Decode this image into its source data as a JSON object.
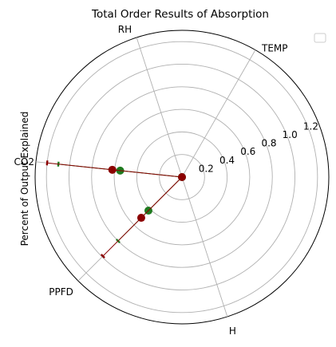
{
  "chart_data": {
    "type": "polar",
    "title": "Total Order Results of Absorption",
    "ylabel": "Percent of Output Explained",
    "theta_labels": [
      "TEMP",
      "RH",
      "CO2",
      "PPFD",
      "H"
    ],
    "theta_degrees": [
      60,
      108,
      174,
      225,
      288
    ],
    "r_ticks": [
      "0.2",
      "0.4",
      "0.6",
      "0.8",
      "1.0",
      "1.2"
    ],
    "r_tick_values": [
      0.2,
      0.4,
      0.6,
      0.8,
      1.0,
      1.2
    ],
    "rlim": [
      0,
      1.3
    ],
    "legend_placement": "top-right",
    "colors": {
      "green": "#1f7a1f",
      "darkred": "#8b0000",
      "grid": "#b0b0b0"
    },
    "series": [
      {
        "color": "#1f7a1f",
        "points": [
          {
            "theta": 174,
            "r": 0.55,
            "upper": 1.1
          },
          {
            "theta": 225,
            "r": 0.42,
            "upper": 0.8
          }
        ]
      },
      {
        "color": "#8b0000",
        "points": [
          {
            "theta": 174,
            "r": 0.62,
            "upper": 1.2
          },
          {
            "theta": 225,
            "r": 0.51,
            "upper": 0.99
          }
        ]
      }
    ]
  }
}
